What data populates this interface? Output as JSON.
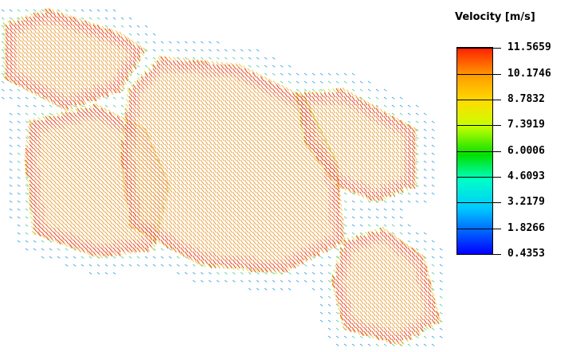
{
  "legend": {
    "title": "Velocity [m/s]",
    "levels": [
      "11.5659",
      "10.1746",
      "8.7832",
      "7.3919",
      "6.0006",
      "4.6093",
      "3.2179",
      "1.8266",
      "0.4353"
    ],
    "colors": [
      "#0000ff",
      "#00c8ff",
      "#00ffc8",
      "#00e000",
      "#c8ff00",
      "#ffdc00",
      "#ffa000",
      "#ff2000"
    ]
  },
  "plot": {
    "description_free": true,
    "arrow_colors": {
      "high": "#e8401a",
      "mid_high": "#e8a040",
      "mid": "#d0e040",
      "low_mid": "#40d0a0",
      "low": "#30a0e0"
    }
  }
}
